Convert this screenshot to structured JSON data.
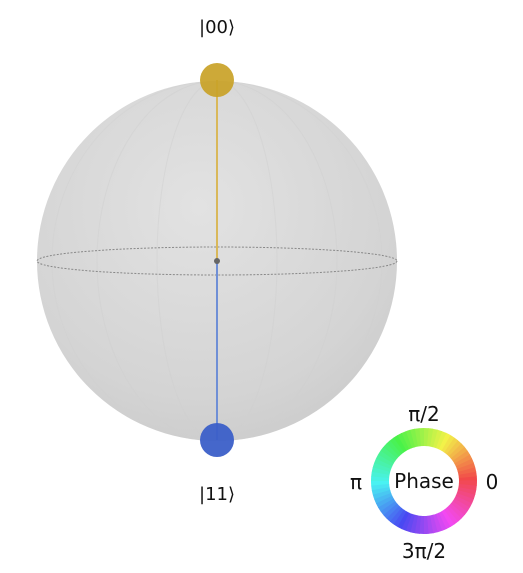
{
  "diagram": {
    "type": "qsphere",
    "states": [
      {
        "label": "|00⟩",
        "color": "#c9a227",
        "stem_color": "#d9b85a"
      },
      {
        "label": "|11⟩",
        "color": "#3b5fc8",
        "stem_color": "#6f8fd6"
      }
    ],
    "sphere_color": "#d6d6d6",
    "equator_color": "#888888",
    "phase_wheel": {
      "center_label": "Phase",
      "label_top": "π/2",
      "label_left": "π",
      "label_right": "0",
      "label_bottom": "3π/2"
    }
  }
}
